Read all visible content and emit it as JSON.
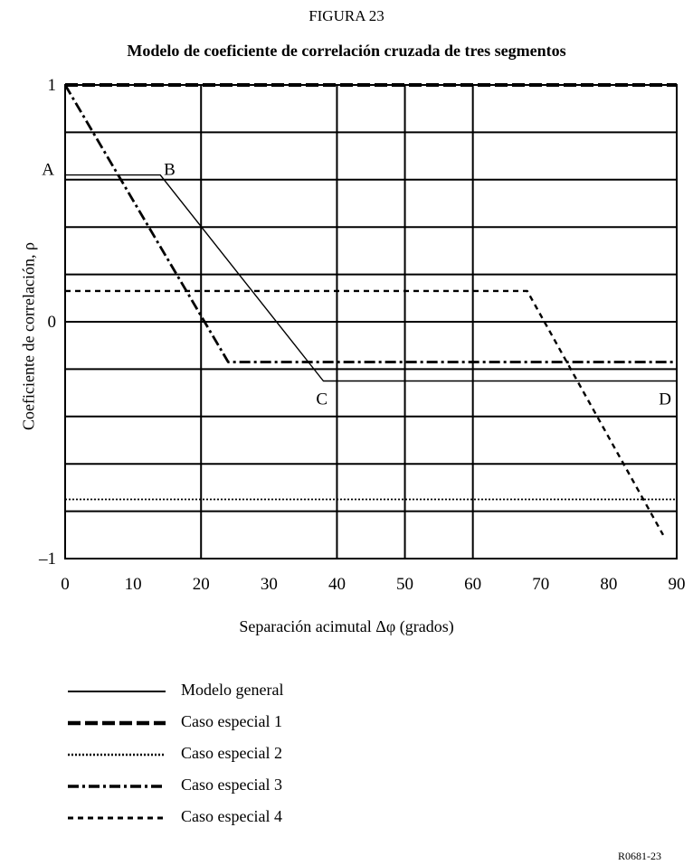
{
  "figure_number": "FIGURA 23",
  "ref_code": "R0681-23",
  "chart_data": {
    "type": "line",
    "title": "Modelo de coeficiente de correlación cruzada de tres segmentos",
    "xlabel": "Separación acimutal   Δφ (grados)",
    "ylabel": "Coeficiente de correlación, ρ",
    "xlim": [
      0,
      90
    ],
    "ylim": [
      -1,
      1
    ],
    "x_ticks": [
      0,
      10,
      20,
      30,
      40,
      50,
      60,
      70,
      80,
      90
    ],
    "y_tick_labels": [
      {
        "value": 1,
        "label": "1"
      },
      {
        "value": 0,
        "label": "0"
      },
      {
        "value": -1,
        "label": "–1"
      }
    ],
    "grid": {
      "horizontal": [
        1,
        0.8,
        0.6,
        0.4,
        0.2,
        0,
        -0.2,
        -0.4,
        -0.6,
        -0.8,
        -1
      ],
      "vertical": [
        0,
        20,
        40,
        50,
        60,
        90
      ]
    },
    "annotations": [
      {
        "text": "A",
        "x": 0,
        "y": 0.62
      },
      {
        "text": "B",
        "x": 14,
        "y": 0.62
      },
      {
        "text": "C",
        "x": 38,
        "y": -0.25
      },
      {
        "text": "D",
        "x": 90,
        "y": -0.25
      }
    ],
    "series": [
      {
        "name": "Modelo general",
        "style": "solid",
        "color": "#000000",
        "x": [
          0,
          14,
          38,
          90
        ],
        "y": [
          0.62,
          0.62,
          -0.25,
          -0.25
        ]
      },
      {
        "name": "Caso especial 1",
        "style": "dash-thick",
        "color": "#000000",
        "x": [
          0,
          90
        ],
        "y": [
          1,
          1
        ]
      },
      {
        "name": "Caso especial 2",
        "style": "dot",
        "color": "#000000",
        "x": [
          0,
          90
        ],
        "y": [
          -0.75,
          -0.75
        ]
      },
      {
        "name": "Caso especial 3",
        "style": "dash-dot",
        "color": "#000000",
        "x": [
          0,
          24,
          90
        ],
        "y": [
          1,
          -0.17,
          -0.17
        ]
      },
      {
        "name": "Caso especial 4",
        "style": "dash",
        "color": "#000000",
        "x": [
          0,
          68,
          88
        ],
        "y": [
          0.13,
          0.13,
          -0.9
        ]
      }
    ]
  }
}
